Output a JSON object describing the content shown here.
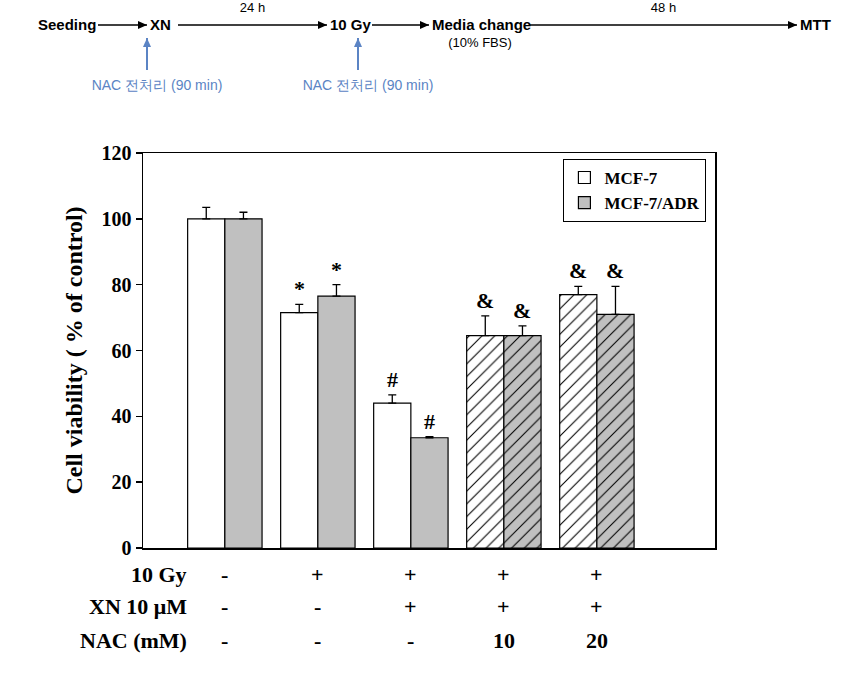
{
  "timeline": {
    "steps": [
      {
        "label": "Seeding"
      },
      {
        "label": "XN",
        "pretreatment": "NAC 전처리 (90 min)"
      },
      {
        "label": "10 Gy",
        "pretreatment": "NAC 전처리 (90 min)"
      },
      {
        "label": "Media change",
        "note": "(10% FBS)"
      },
      {
        "label": "MTT"
      }
    ],
    "arrows": [
      null,
      "24 h",
      null,
      "48 h"
    ]
  },
  "chart_data": {
    "type": "bar",
    "y_label": "Cell viability ( % of control)",
    "categories": [
      null,
      null,
      null,
      null,
      null
    ],
    "series": [
      {
        "name": "MCF-7",
        "color": "#ffffff",
        "values": [
          100,
          71.5,
          44,
          64.5,
          77
        ],
        "errors": [
          3.5,
          2.5,
          2.5,
          6,
          2.5
        ],
        "significance": [
          null,
          "*",
          "#",
          "&",
          "&"
        ]
      },
      {
        "name": "MCF-7/ADR",
        "color": "#c0c0c0",
        "values": [
          100,
          76.5,
          33.5,
          64.5,
          71
        ],
        "errors": [
          2,
          3.5,
          0.3,
          3,
          8.5
        ],
        "significance": [
          null,
          "*",
          "#",
          "&",
          "&"
        ]
      }
    ],
    "conditions": [
      {
        "label": "10 Gy",
        "values": [
          "-",
          "+",
          "+",
          "+",
          "+"
        ]
      },
      {
        "label": "XN 10 μM",
        "values": [
          "-",
          "-",
          "+",
          "+",
          "+"
        ]
      },
      {
        "label": "NAC (mM)",
        "values": [
          "-",
          "-",
          "-",
          "10",
          "20"
        ]
      }
    ],
    "ylim": [
      0,
      120
    ],
    "yticks": [
      0,
      20,
      40,
      60,
      80,
      100,
      120
    ],
    "grid": false,
    "legend": "upper right"
  }
}
